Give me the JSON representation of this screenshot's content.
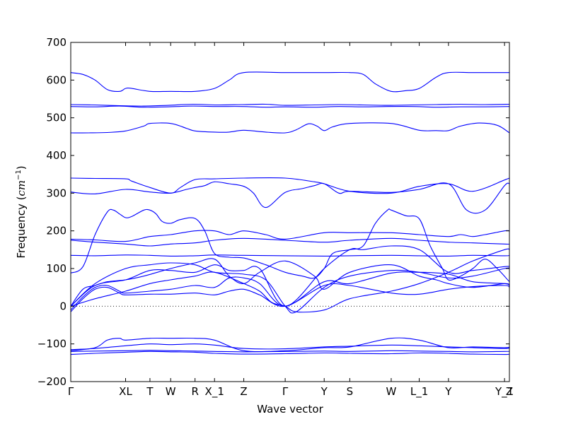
{
  "chart_data": {
    "type": "line",
    "xlabel": "Wave vector",
    "ylabel_text": "Frequency (",
    "ylabel_unit": "cm",
    "ylabel_exp": "−1",
    "ylabel_close": ")",
    "ylim": [
      -200,
      700
    ],
    "yticks": [
      -200,
      -100,
      0,
      100,
      200,
      300,
      400,
      500,
      600,
      700
    ],
    "xlim": [
      0,
      36
    ],
    "zero_line": true,
    "line_color": "#0000ff",
    "kpoint_labels": [
      {
        "x": 0,
        "label": "Γ"
      },
      {
        "x": 4.5,
        "label": "XL"
      },
      {
        "x": 6.5,
        "label": "T"
      },
      {
        "x": 8.2,
        "label": "W"
      },
      {
        "x": 10.2,
        "label": "R"
      },
      {
        "x": 11.8,
        "label": "X_1"
      },
      {
        "x": 14.2,
        "label": "Z"
      },
      {
        "x": 17.6,
        "label": "Γ"
      },
      {
        "x": 20.8,
        "label": "Y"
      },
      {
        "x": 22.9,
        "label": "S"
      },
      {
        "x": 26.3,
        "label": "W"
      },
      {
        "x": 28.6,
        "label": "L_1"
      },
      {
        "x": 31.0,
        "label": "Y"
      },
      {
        "x": 35.6,
        "label": "Y_1"
      },
      {
        "x": 36.0,
        "label": "Z"
      }
    ],
    "series": [
      {
        "x": [
          0,
          1,
          2,
          3,
          4,
          4.5,
          5,
          6.5,
          8.2,
          10.2,
          11.8,
          13,
          14.2,
          17.6,
          20.8,
          22.9,
          24,
          25,
          26.3,
          27.5,
          28.6,
          30,
          31,
          33,
          35.6,
          36
        ],
        "values": [
          620,
          615,
          600,
          575,
          570,
          578,
          578,
          570,
          570,
          570,
          578,
          600,
          620,
          620,
          620,
          620,
          615,
          590,
          570,
          572,
          578,
          608,
          620,
          620,
          620,
          620
        ]
      },
      {
        "x": [
          0,
          2,
          4,
          6,
          8,
          10,
          12,
          14,
          16,
          17.6,
          20,
          22,
          24,
          26,
          28,
          30,
          32,
          34,
          36
        ],
        "values": [
          535,
          534,
          532,
          531,
          533,
          536,
          534,
          535,
          536,
          533,
          534,
          535,
          534,
          533,
          534,
          535,
          536,
          535,
          536
        ]
      },
      {
        "x": [
          0,
          2,
          4,
          6,
          8,
          10,
          12,
          14,
          16,
          17.6,
          20,
          22,
          24,
          26,
          28,
          30,
          32,
          34,
          36
        ],
        "values": [
          530,
          529,
          531,
          528,
          529,
          531,
          530,
          530,
          528,
          529,
          528,
          530,
          529,
          530,
          530,
          528,
          529,
          529,
          530
        ]
      },
      {
        "x": [
          0,
          1.5,
          3,
          4.5,
          6,
          6.5,
          8.2,
          9.5,
          10.2,
          11.8,
          13,
          14.2,
          16,
          17.6,
          18.5,
          19.5,
          20.2,
          20.8,
          21.5,
          22.9,
          26.3,
          28.6,
          30,
          31,
          32,
          33.5,
          35,
          36
        ],
        "values": [
          460,
          460,
          461,
          465,
          478,
          485,
          485,
          472,
          465,
          462,
          462,
          467,
          462,
          460,
          468,
          484,
          478,
          466,
          476,
          485,
          485,
          467,
          466,
          466,
          478,
          486,
          480,
          460
        ]
      },
      {
        "x": [
          0,
          2,
          4.5,
          5,
          6.5,
          8.2,
          9,
          10.2,
          11.8,
          14.2,
          17.6,
          20,
          20.8,
          22.9,
          26.3,
          28.6,
          31,
          33,
          35.6,
          36
        ],
        "values": [
          340,
          339,
          338,
          332,
          315,
          300,
          315,
          336,
          338,
          340,
          340,
          330,
          325,
          305,
          300,
          318,
          325,
          305,
          335,
          340
        ]
      },
      {
        "x": [
          0,
          2,
          4.5,
          6.5,
          8.2,
          9.5,
          10.2,
          11,
          11.8,
          13,
          14.2,
          15,
          16,
          17.6,
          19,
          20,
          20.8,
          22,
          22.9,
          26.3,
          28.6,
          31,
          32.5,
          34,
          35.6,
          36
        ],
        "values": [
          303,
          298,
          310,
          303,
          300,
          310,
          315,
          320,
          330,
          325,
          318,
          300,
          262,
          302,
          312,
          320,
          325,
          300,
          305,
          302,
          310,
          325,
          255,
          255,
          320,
          325
        ]
      },
      {
        "x": [
          0,
          1,
          2,
          3,
          3.5,
          4,
          4.5,
          5,
          6,
          6.5,
          7,
          7.5,
          8.2,
          9,
          10.2,
          11,
          11.8,
          13,
          14.2,
          16,
          17.6,
          19,
          20,
          20.8,
          21.5,
          22.9,
          24,
          25,
          26,
          26.3,
          27.5,
          28.6,
          29.5,
          30.5,
          31,
          32,
          33,
          34,
          35,
          36
        ],
        "values": [
          88,
          105,
          190,
          250,
          255,
          245,
          235,
          238,
          255,
          255,
          245,
          225,
          220,
          230,
          233,
          200,
          140,
          130,
          128,
          110,
          90,
          80,
          75,
          100,
          140,
          150,
          160,
          220,
          255,
          255,
          240,
          232,
          160,
          100,
          70,
          80,
          100,
          125,
          100,
          65
        ]
      },
      {
        "x": [
          0,
          2,
          4.5,
          6.5,
          8.2,
          10.2,
          11.8,
          13,
          14.2,
          16,
          17.6,
          20.8,
          22.9,
          26.3,
          28.6,
          31,
          32,
          33,
          34,
          35.6,
          36
        ],
        "values": [
          178,
          176,
          172,
          185,
          190,
          200,
          200,
          190,
          200,
          190,
          178,
          195,
          195,
          195,
          190,
          185,
          190,
          185,
          190,
          200,
          200
        ]
      },
      {
        "x": [
          0,
          2,
          4.5,
          6.5,
          8.2,
          10.2,
          11.8,
          14.2,
          17.6,
          20.8,
          22.9,
          26.3,
          28.6,
          31,
          33,
          35.6,
          36
        ],
        "values": [
          175,
          170,
          165,
          160,
          165,
          168,
          175,
          180,
          175,
          170,
          175,
          180,
          175,
          170,
          168,
          165,
          165
        ]
      },
      {
        "x": [
          0,
          2,
          4.5,
          6.5,
          8.2,
          10.2,
          11.8,
          14.2,
          17.6,
          20.8,
          22.9,
          26.3,
          28.6,
          31,
          33,
          35.6,
          36
        ],
        "values": [
          135,
          134,
          136,
          135,
          133,
          134,
          136,
          135,
          134,
          133,
          134,
          135,
          134,
          133,
          135,
          134,
          135
        ]
      },
      {
        "x": [
          0,
          1,
          2,
          3,
          4.5,
          6,
          8.2,
          10.2,
          11.8,
          13,
          14.2,
          15.5,
          17.6,
          20,
          20.8,
          22.9,
          26.3,
          28.6,
          30,
          31,
          33,
          35.6,
          36
        ],
        "values": [
          0,
          45,
          55,
          65,
          70,
          80,
          100,
          115,
          125,
          80,
          60,
          90,
          120,
          80,
          45,
          90,
          110,
          80,
          70,
          60,
          50,
          60,
          55
        ]
      },
      {
        "x": [
          0,
          2,
          4.5,
          6.5,
          8.2,
          10.2,
          11.8,
          13,
          14.2,
          15.5,
          17.6,
          20.8,
          22.9,
          24,
          26.3,
          28.6,
          31,
          33,
          35.6,
          36
        ],
        "values": [
          0,
          55,
          70,
          95,
          95,
          90,
          110,
          95,
          95,
          100,
          0,
          100,
          150,
          150,
          160,
          150,
          90,
          95,
          105,
          105
        ]
      },
      {
        "x": [
          0,
          1,
          2,
          3,
          4,
          4.5,
          6.5,
          8.2,
          10.2,
          11.8,
          13,
          14.2,
          15.5,
          17.6,
          20.8,
          22.9,
          26.3,
          28.6,
          31,
          33,
          35.6,
          36
        ],
        "values": [
          -15,
          20,
          45,
          50,
          35,
          30,
          32,
          32,
          35,
          30,
          40,
          45,
          30,
          0,
          55,
          55,
          35,
          32,
          45,
          52,
          55,
          50
        ]
      },
      {
        "x": [
          0,
          1,
          2,
          3,
          4,
          4.5,
          6.5,
          8.2,
          10.2,
          11.8,
          13,
          14.2,
          15.5,
          17.6,
          20.8,
          22.9,
          26.3,
          28.6,
          31,
          33,
          35.6,
          36
        ],
        "values": [
          -10,
          25,
          50,
          55,
          40,
          35,
          40,
          45,
          55,
          50,
          75,
          75,
          60,
          0,
          65,
          60,
          88,
          90,
          85,
          65,
          60,
          55
        ]
      },
      {
        "x": [
          0,
          2,
          4.5,
          6.5,
          8.2,
          10.2,
          11.8,
          14.2,
          16,
          17.6,
          18.5,
          20.8,
          22.9,
          26.3,
          28.6,
          31,
          33,
          35.6,
          36
        ],
        "values": [
          0,
          60,
          100,
          110,
          115,
          110,
          90,
          85,
          70,
          0,
          -15,
          50,
          80,
          95,
          90,
          75,
          80,
          100,
          100
        ]
      },
      {
        "x": [
          0,
          2,
          4.5,
          6.5,
          8.2,
          10.2,
          11.8,
          14.2,
          15.5,
          16.5,
          17.6,
          18.5,
          20.8,
          22.9,
          26.3,
          28.6,
          31,
          33,
          35.6,
          36
        ],
        "values": [
          0,
          20,
          40,
          60,
          70,
          80,
          90,
          60,
          40,
          10,
          0,
          -15,
          -10,
          20,
          40,
          60,
          90,
          120,
          150,
          150
        ]
      },
      {
        "x": [
          0,
          2,
          3,
          4,
          4.5,
          6.5,
          8.2,
          10.2,
          11.8,
          14.2,
          17.6,
          20.8,
          22.9,
          26.3,
          28.6,
          31,
          33,
          35.6,
          36
        ],
        "values": [
          -118,
          -110,
          -90,
          -85,
          -90,
          -85,
          -85,
          -85,
          -90,
          -118,
          -118,
          -110,
          -108,
          -85,
          -90,
          -110,
          -108,
          -110,
          -108
        ]
      },
      {
        "x": [
          0,
          2,
          4.5,
          6.5,
          8.2,
          10.2,
          11.8,
          14.2,
          17.6,
          20.8,
          22.9,
          26.3,
          28.6,
          31,
          33,
          35.6,
          36
        ],
        "values": [
          -115,
          -112,
          -105,
          -100,
          -102,
          -100,
          -103,
          -112,
          -113,
          -108,
          -106,
          -103,
          -105,
          -108,
          -110,
          -112,
          -110
        ]
      },
      {
        "x": [
          0,
          2,
          4.5,
          6.5,
          8.2,
          10.2,
          11.8,
          14.2,
          17.6,
          20.8,
          22.9,
          26.3,
          28.6,
          31,
          33,
          35.6,
          36
        ],
        "values": [
          -120,
          -119,
          -118,
          -117,
          -118,
          -119,
          -120,
          -121,
          -120,
          -119,
          -120,
          -118,
          -119,
          -120,
          -121,
          -120,
          -120
        ]
      },
      {
        "x": [
          0,
          2,
          4.5,
          6.5,
          8.2,
          10.2,
          11.8,
          14.2,
          17.6,
          20.8,
          22.9,
          26.3,
          28.6,
          31,
          33,
          35.6,
          36
        ],
        "values": [
          -128,
          -125,
          -122,
          -120,
          -121,
          -122,
          -125,
          -127,
          -126,
          -124,
          -125,
          -126,
          -124,
          -125,
          -127,
          -128,
          -127
        ]
      }
    ]
  }
}
